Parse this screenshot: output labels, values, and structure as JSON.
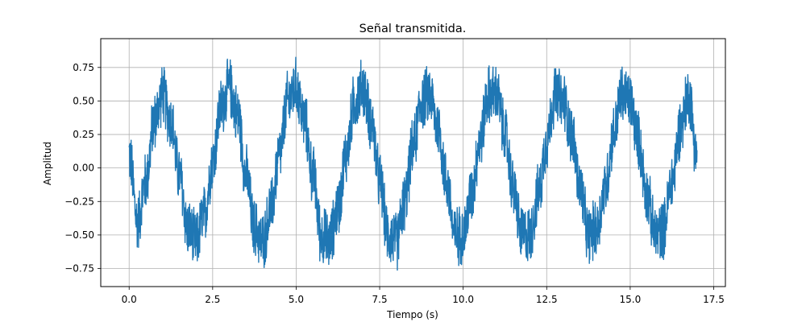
{
  "chart_data": {
    "type": "line",
    "title": "Señal transmitida.",
    "xlabel": "Tiempo (s)",
    "ylabel": "Amplitud",
    "xlim": [
      -0.85,
      17.85
    ],
    "ylim": [
      -0.885,
      0.965
    ],
    "x_ticks": [
      0.0,
      2.5,
      5.0,
      7.5,
      10.0,
      12.5,
      15.0,
      17.5
    ],
    "x_tick_labels": [
      "0.0",
      "2.5",
      "5.0",
      "7.5",
      "10.0",
      "12.5",
      "15.0",
      "17.5"
    ],
    "y_ticks": [
      -0.75,
      -0.5,
      -0.25,
      0.0,
      0.25,
      0.5,
      0.75
    ],
    "y_tick_labels": [
      "−0.75",
      "−0.50",
      "−0.25",
      "0.00",
      "0.25",
      "0.50",
      "0.75"
    ],
    "grid": true,
    "series": [
      {
        "color": "#1f77b4",
        "x": [
          0.0,
          0.25,
          0.5,
          0.75,
          1.0,
          1.25,
          1.5,
          1.75,
          2.0,
          2.25,
          2.5,
          2.75,
          3.0,
          3.25,
          3.5,
          3.75,
          4.0,
          4.25,
          4.5,
          4.75,
          5.0,
          5.25,
          5.5,
          5.75,
          6.0,
          6.25,
          6.5,
          6.75,
          7.0,
          7.25,
          7.5,
          7.75,
          8.0,
          8.25,
          8.5,
          8.75,
          9.0,
          9.25,
          9.5,
          9.75,
          10.0,
          10.25,
          10.5,
          10.75,
          11.0,
          11.25,
          11.5,
          11.75,
          12.0,
          12.25,
          12.5,
          12.75,
          13.0,
          13.25,
          13.5,
          13.75,
          14.0,
          14.25,
          14.5,
          14.75,
          15.0,
          15.25,
          15.5,
          15.75,
          16.0,
          16.25,
          16.5,
          16.75,
          17.0
        ],
        "y": [
          0.1,
          -0.4,
          -0.1,
          0.35,
          0.55,
          0.35,
          -0.05,
          -0.45,
          -0.55,
          -0.35,
          0.05,
          0.45,
          0.6,
          0.4,
          -0.05,
          -0.45,
          -0.55,
          -0.3,
          0.1,
          0.5,
          0.6,
          0.35,
          -0.05,
          -0.5,
          -0.55,
          -0.3,
          0.1,
          0.5,
          0.6,
          0.35,
          -0.1,
          -0.5,
          -0.55,
          -0.25,
          0.15,
          0.5,
          0.55,
          0.3,
          -0.1,
          -0.5,
          -0.5,
          -0.2,
          0.2,
          0.55,
          0.55,
          0.25,
          -0.15,
          -0.5,
          -0.5,
          -0.2,
          0.2,
          0.55,
          0.5,
          0.25,
          -0.15,
          -0.5,
          -0.45,
          -0.15,
          0.25,
          0.55,
          0.5,
          0.2,
          -0.2,
          -0.5,
          -0.45,
          -0.1,
          0.3,
          0.55,
          0.1
        ],
        "y_envelope_amplitude": 0.25
      }
    ]
  }
}
